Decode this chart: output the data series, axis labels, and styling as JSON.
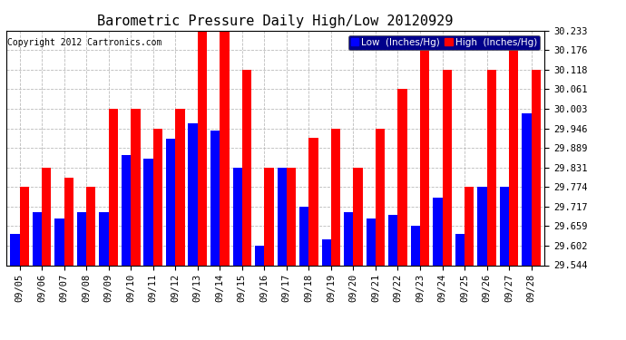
{
  "title": "Barometric Pressure Daily High/Low 20120929",
  "copyright": "Copyright 2012 Cartronics.com",
  "legend_low": "Low  (Inches/Hg)",
  "legend_high": "High  (Inches/Hg)",
  "dates": [
    "09/05",
    "09/06",
    "09/07",
    "09/08",
    "09/09",
    "09/10",
    "09/11",
    "09/12",
    "09/13",
    "09/14",
    "09/15",
    "09/16",
    "09/17",
    "09/18",
    "09/19",
    "09/20",
    "09/21",
    "09/22",
    "09/23",
    "09/24",
    "09/25",
    "09/26",
    "09/27",
    "09/28"
  ],
  "low": [
    29.636,
    29.7,
    29.68,
    29.7,
    29.7,
    29.868,
    29.858,
    29.916,
    29.96,
    29.94,
    29.831,
    29.602,
    29.831,
    29.717,
    29.62,
    29.7,
    29.68,
    29.693,
    29.659,
    29.742,
    29.636,
    29.774,
    29.774,
    29.99
  ],
  "high": [
    29.774,
    29.831,
    29.8,
    29.774,
    30.003,
    30.003,
    29.946,
    30.003,
    30.233,
    30.233,
    30.118,
    29.831,
    29.831,
    29.917,
    29.946,
    29.831,
    29.946,
    30.061,
    30.176,
    30.118,
    29.774,
    30.118,
    30.176,
    30.118
  ],
  "ylim": [
    29.544,
    30.233
  ],
  "yticks": [
    29.544,
    29.602,
    29.659,
    29.717,
    29.774,
    29.831,
    29.889,
    29.946,
    30.003,
    30.061,
    30.118,
    30.176,
    30.233
  ],
  "bar_width": 0.42,
  "low_color": "#0000ff",
  "high_color": "#ff0000",
  "background_color": "#ffffff",
  "grid_color": "#bbbbbb",
  "title_fontsize": 11,
  "copyright_fontsize": 7,
  "tick_fontsize": 7.5,
  "legend_fontsize": 7.5
}
